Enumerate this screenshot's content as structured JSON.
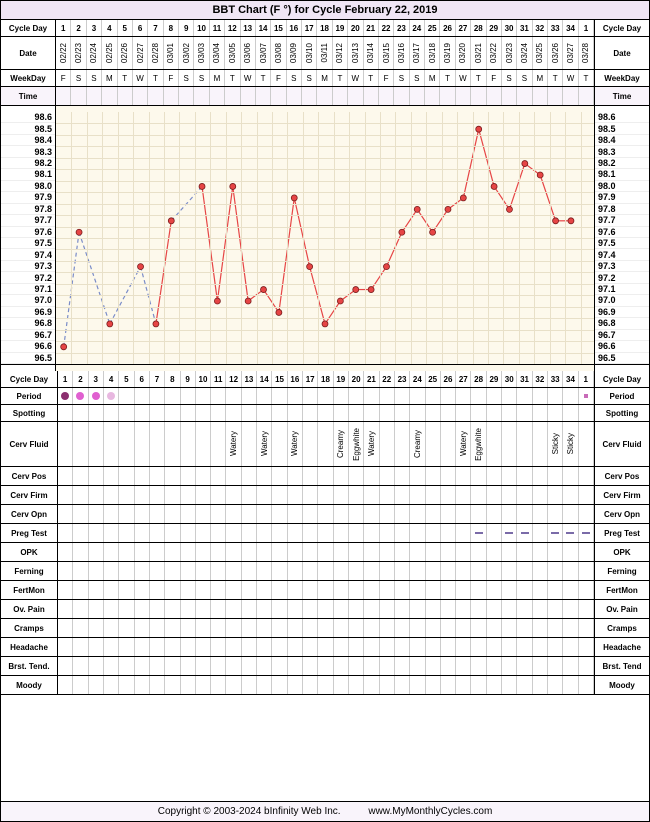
{
  "title": "BBT Chart (F °) for Cycle February 22, 2019",
  "footer_left": "Copyright © 2003-2024 bInfinity Web Inc.",
  "footer_right": "www.MyMonthlyCycles.com",
  "labels": {
    "cycle_day": "Cycle Day",
    "date": "Date",
    "weekday": "WeekDay",
    "time": "Time",
    "period": "Period",
    "spotting": "Spotting",
    "cerv_fluid": "Cerv Fluid",
    "cerv_pos": "Cerv Pos",
    "cerv_firm": "Cerv Firm",
    "cerv_opn": "Cerv Opn",
    "preg_test": "Preg Test",
    "opk": "OPK",
    "ferning": "Ferning",
    "fertmon": "FertMon",
    "ov_pain": "Ov. Pain",
    "cramps": "Cramps",
    "headache": "Headache",
    "brst_tend": "Brst. Tend.",
    "brst_tend_r": "Brst. Tend",
    "moody": "Moody"
  },
  "cycle_days": [
    "1",
    "2",
    "3",
    "4",
    "5",
    "6",
    "7",
    "8",
    "9",
    "10",
    "11",
    "12",
    "13",
    "14",
    "15",
    "16",
    "17",
    "18",
    "19",
    "20",
    "21",
    "22",
    "23",
    "24",
    "25",
    "26",
    "27",
    "28",
    "29",
    "30",
    "31",
    "32",
    "33",
    "34",
    "1"
  ],
  "dates": [
    "02/22",
    "02/23",
    "02/24",
    "02/25",
    "02/26",
    "02/27",
    "02/28",
    "03/01",
    "03/02",
    "03/03",
    "03/04",
    "03/05",
    "03/06",
    "03/07",
    "03/08",
    "03/09",
    "03/10",
    "03/11",
    "03/12",
    "03/13",
    "03/14",
    "03/15",
    "03/16",
    "03/17",
    "03/18",
    "03/19",
    "03/20",
    "03/21",
    "03/22",
    "03/23",
    "03/24",
    "03/25",
    "03/26",
    "03/27",
    "03/28"
  ],
  "weekdays": [
    "F",
    "S",
    "S",
    "M",
    "T",
    "W",
    "T",
    "F",
    "S",
    "S",
    "M",
    "T",
    "W",
    "T",
    "F",
    "S",
    "S",
    "M",
    "T",
    "W",
    "T",
    "F",
    "S",
    "S",
    "M",
    "T",
    "W",
    "T",
    "F",
    "S",
    "S",
    "M",
    "T",
    "W",
    "T"
  ],
  "y_ticks": [
    "98.6",
    "98.5",
    "98.4",
    "98.3",
    "98.2",
    "98.1",
    "98.0",
    "97.9",
    "97.8",
    "97.7",
    "97.6",
    "97.5",
    "97.4",
    "97.3",
    "97.2",
    "97.1",
    "97.0",
    "96.9",
    "96.8",
    "96.7",
    "96.6",
    "96.5"
  ],
  "y_min": 96.5,
  "y_max": 98.6,
  "chart": {
    "line_color": "#e64545",
    "dash_color": "#7a8cc8",
    "marker_fill": "#e64545",
    "marker_stroke": "#7a1c1c",
    "marker_r": 3,
    "background": "#fdf9ec",
    "grid_color": "#e8e0c8"
  },
  "temps": [
    96.6,
    97.6,
    null,
    96.8,
    null,
    97.3,
    96.8,
    97.7,
    null,
    98.0,
    97.0,
    98.0,
    97.0,
    97.1,
    96.9,
    97.9,
    97.3,
    96.8,
    97.0,
    97.1,
    97.1,
    97.3,
    97.6,
    97.8,
    97.6,
    97.8,
    97.9,
    98.5,
    98.0,
    97.8,
    98.2,
    98.1,
    97.7,
    97.7,
    null
  ],
  "solid_from_day": 6,
  "period": {
    "days": [
      1,
      2,
      3,
      4
    ],
    "colors": [
      "#8b2f6f",
      "#e060d0",
      "#e060d0",
      "#e8b8e0"
    ],
    "last_spot": 35
  },
  "cerv_fluid": {
    "12": "Watery",
    "14": "Watery",
    "16": "Watery",
    "19": "Creamy",
    "20": "Eggwhite",
    "21": "Watery",
    "24": "Creamy",
    "27": "Watery",
    "28": "Eggwhite",
    "33": "Sticky",
    "34": "Sticky"
  },
  "preg_test_days": [
    28,
    30,
    31,
    33,
    34,
    35
  ],
  "tracking_row_keys": [
    "cerv_pos",
    "cerv_firm",
    "cerv_opn",
    "preg_test",
    "opk",
    "ferning",
    "fertmon",
    "ov_pain",
    "cramps",
    "headache",
    "brst_tend",
    "moody"
  ]
}
